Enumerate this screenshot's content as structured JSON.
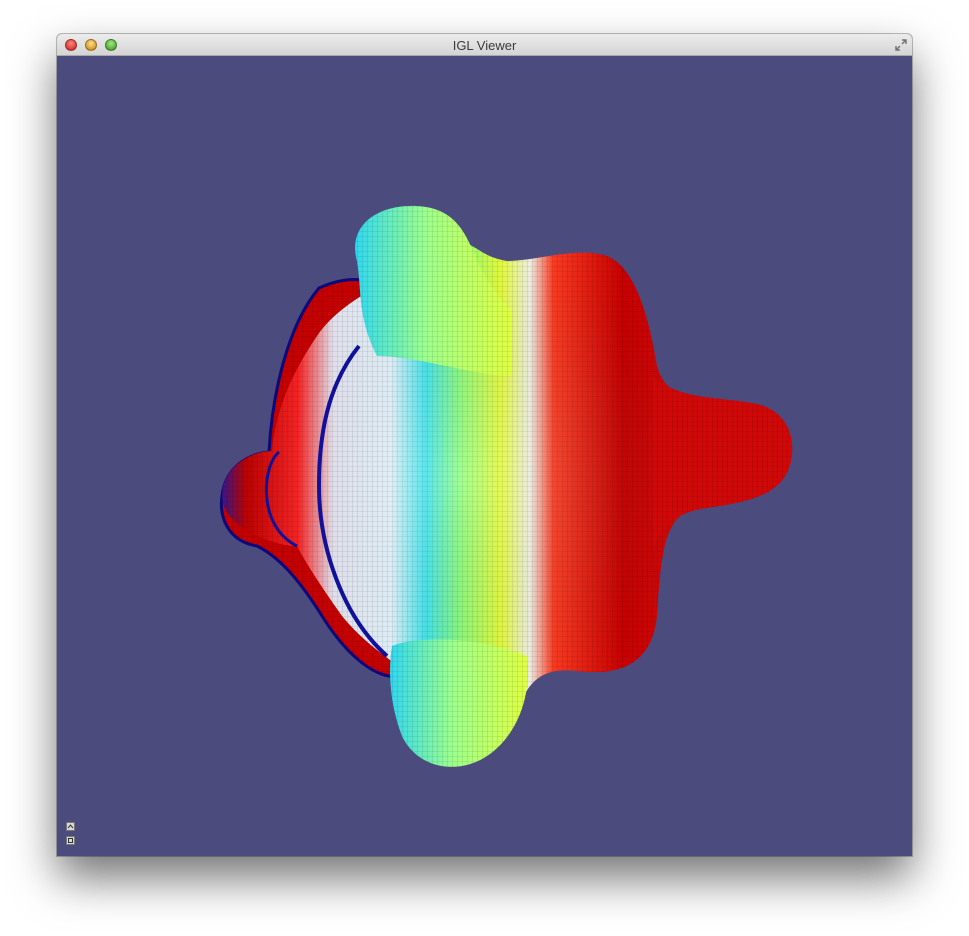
{
  "window": {
    "title": "IGL Viewer"
  },
  "viewport": {
    "background_color": "#4b4b7d",
    "mesh": {
      "color_map": "jet",
      "colors": {
        "blue": "#1a1aa8",
        "cyan": "#2ee6e6",
        "green": "#8cff7a",
        "yellow": "#e8ff3a",
        "red": "#ff1a1a",
        "dark_red": "#8a0000"
      }
    }
  },
  "corner_controls": [
    {
      "name": "collapse-panel-icon"
    },
    {
      "name": "panel-settings-icon"
    }
  ]
}
